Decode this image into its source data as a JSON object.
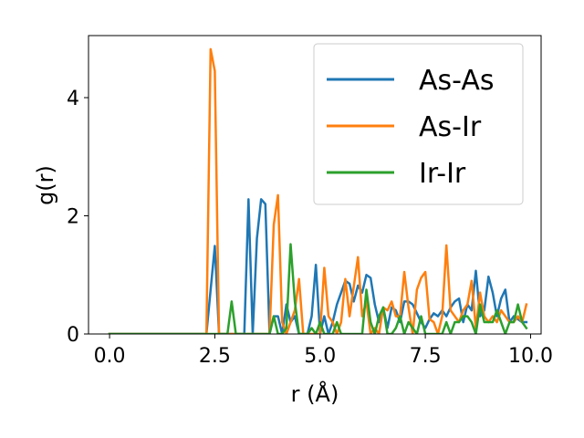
{
  "chart_data": {
    "type": "line",
    "title": "",
    "xlabel": "r (Å)",
    "ylabel": "g(r)",
    "xlim": [
      -0.5,
      10.25
    ],
    "ylim": [
      0,
      5.05
    ],
    "xticks": [
      0.0,
      2.5,
      5.0,
      7.5,
      10.0
    ],
    "xtick_labels": [
      "0.0",
      "2.5",
      "5.0",
      "7.5",
      "10.0"
    ],
    "yticks": [
      0,
      2,
      4
    ],
    "ytick_labels": [
      "0",
      "2",
      "4"
    ],
    "grid": false,
    "legend_position": "top-right",
    "series": [
      {
        "name": "As-As",
        "color": "#1f77b4",
        "x": [
          0,
          2.3,
          2.5,
          2.6,
          2.7,
          2.8,
          3.0,
          3.1,
          3.2,
          3.3,
          3.4,
          3.5,
          3.6,
          3.7,
          3.8,
          3.9,
          4.0,
          4.1,
          4.2,
          4.3,
          4.4,
          4.5,
          4.6,
          4.7,
          4.8,
          4.9,
          5.0,
          5.1,
          5.2,
          5.3,
          5.4,
          5.5,
          5.6,
          5.7,
          5.8,
          5.9,
          6.0,
          6.1,
          6.2,
          6.3,
          6.4,
          6.5,
          6.6,
          6.7,
          6.8,
          6.9,
          7.0,
          7.1,
          7.2,
          7.3,
          7.4,
          7.5,
          7.6,
          7.7,
          7.8,
          7.9,
          8.0,
          8.1,
          8.2,
          8.3,
          8.4,
          8.5,
          8.6,
          8.7,
          8.8,
          8.9,
          9.0,
          9.1,
          9.2,
          9.3,
          9.4,
          9.5,
          9.6,
          9.7,
          9.8,
          9.9
        ],
        "y": [
          0,
          0,
          1.49,
          0,
          0,
          0,
          0,
          0,
          0,
          2.28,
          0,
          1.62,
          2.28,
          2.2,
          0,
          0.3,
          0.3,
          0,
          0.5,
          0.2,
          0.3,
          0,
          0,
          0,
          0.3,
          1.17,
          0,
          0.3,
          0,
          0.2,
          0.5,
          0.7,
          0.9,
          0.85,
          0.55,
          0.82,
          0.7,
          1.0,
          0.95,
          0.5,
          0.2,
          0.45,
          0.1,
          0.45,
          0.4,
          0.2,
          0.55,
          0.55,
          0.5,
          0.35,
          0.2,
          0.1,
          0.25,
          0.35,
          0.3,
          0.4,
          0.3,
          0.45,
          0.55,
          0.6,
          0.2,
          0.5,
          0.4,
          1.07,
          0.3,
          0.4,
          0.97,
          0.7,
          0.3,
          0.6,
          0.75,
          0.2,
          0.3,
          0.25,
          0.2,
          0.2
        ]
      },
      {
        "name": "As-Ir",
        "color": "#ff7f0e",
        "x": [
          0,
          2.3,
          2.4,
          2.5,
          2.6,
          3.6,
          3.7,
          3.8,
          3.9,
          4.0,
          4.1,
          4.2,
          4.3,
          4.4,
          4.5,
          4.6,
          4.7,
          4.8,
          4.9,
          5.0,
          5.1,
          5.2,
          5.3,
          5.4,
          5.5,
          5.6,
          5.7,
          5.8,
          5.9,
          6.0,
          6.1,
          6.2,
          6.3,
          6.4,
          6.5,
          6.6,
          6.7,
          6.8,
          6.9,
          7.0,
          7.1,
          7.2,
          7.3,
          7.4,
          7.5,
          7.6,
          7.7,
          7.8,
          7.9,
          8.0,
          8.1,
          8.2,
          8.3,
          8.4,
          8.5,
          8.6,
          8.7,
          8.8,
          8.9,
          9.0,
          9.1,
          9.2,
          9.3,
          9.4,
          9.5,
          9.6,
          9.7,
          9.8,
          9.9
        ],
        "y": [
          0,
          0,
          4.82,
          4.45,
          0,
          0,
          0,
          0,
          1.85,
          2.35,
          0.2,
          0,
          0.2,
          0.4,
          0.93,
          0,
          0,
          0,
          0,
          0,
          1.12,
          0.3,
          0.2,
          0,
          0.2,
          0.93,
          0.3,
          0.8,
          1.3,
          0.3,
          0.55,
          0,
          0.1,
          0,
          0.45,
          0.4,
          0.55,
          0.3,
          0.3,
          1.05,
          0.45,
          0,
          0.75,
          0.95,
          1.05,
          0.25,
          0.2,
          0,
          0.3,
          1.5,
          0.4,
          0.3,
          0.2,
          0.4,
          0.5,
          0.9,
          0.1,
          0.7,
          0.3,
          0.2,
          0.3,
          0.2,
          0.4,
          0.3,
          0.2,
          0.2,
          0.3,
          0.2,
          0.5
        ]
      },
      {
        "name": "Ir-Ir",
        "color": "#2ca02c",
        "x": [
          0,
          2.6,
          2.7,
          2.8,
          2.9,
          3.0,
          3.1,
          3.2,
          3.3,
          3.4,
          3.5,
          3.6,
          3.7,
          3.8,
          3.9,
          4.0,
          4.1,
          4.2,
          4.3,
          4.4,
          4.5,
          4.6,
          4.7,
          4.8,
          4.9,
          5.0,
          5.1,
          5.2,
          5.3,
          5.4,
          5.5,
          5.6,
          5.7,
          5.8,
          5.9,
          6.0,
          6.1,
          6.2,
          6.3,
          6.4,
          6.5,
          6.6,
          6.7,
          6.8,
          6.9,
          7.0,
          7.1,
          7.2,
          7.3,
          7.4,
          7.5,
          7.6,
          7.7,
          7.8,
          7.9,
          8.0,
          8.1,
          8.2,
          8.3,
          8.4,
          8.5,
          8.6,
          8.7,
          8.8,
          8.9,
          9.0,
          9.1,
          9.2,
          9.3,
          9.4,
          9.5,
          9.6,
          9.7,
          9.8,
          9.9
        ],
        "y": [
          0,
          0,
          0,
          0,
          0.55,
          0,
          0,
          0,
          0,
          0,
          0,
          0,
          0,
          0,
          0.3,
          0,
          0,
          0.1,
          1.52,
          0.55,
          0,
          0,
          0,
          0.1,
          0,
          0.2,
          0,
          0,
          0,
          0.2,
          0,
          0,
          0,
          0,
          0,
          0,
          0.75,
          0.2,
          0,
          0.3,
          0.45,
          0,
          0,
          0.1,
          0.3,
          0,
          0.2,
          0.1,
          0,
          0.3,
          0,
          0,
          0,
          0,
          0,
          0.2,
          0,
          0.2,
          0.2,
          0.3,
          0.3,
          0.2,
          0,
          0.5,
          0.2,
          0.2,
          0.2,
          0.4,
          0.2,
          0,
          0.2,
          0.2,
          0.5,
          0.2,
          0.1
        ]
      }
    ]
  }
}
